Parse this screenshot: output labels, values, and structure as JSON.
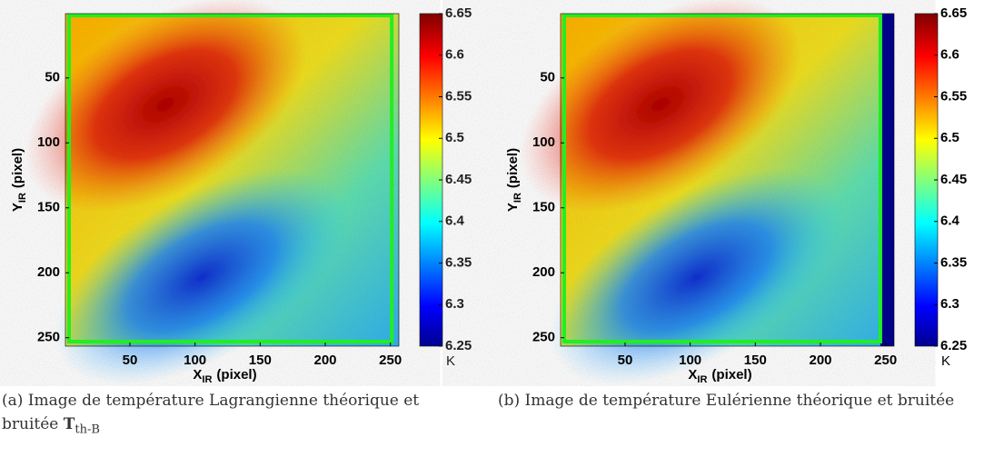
{
  "chart_data": [
    {
      "type": "heatmap",
      "colormap": "jet",
      "xlabel": {
        "main": "X",
        "sub": "IR",
        "unit": "(pixel)"
      },
      "ylabel": {
        "main": "Y",
        "sub": "IR",
        "unit": "(pixel)"
      },
      "xlim": [
        0.5,
        256.5
      ],
      "ylim": [
        256.5,
        0.5
      ],
      "xticks": [
        50,
        100,
        150,
        200,
        250
      ],
      "yticks": [
        50,
        100,
        150,
        200,
        250
      ],
      "colorbar": {
        "lim": [
          6.25,
          6.65
        ],
        "ticks": [
          6.25,
          6.3,
          6.35,
          6.4,
          6.45,
          6.5,
          6.55,
          6.6,
          6.65
        ],
        "unit": "K"
      },
      "caption": {
        "text": "(a) Image de température Lagrangienne théorique et bruitée",
        "symbol": "T",
        "sub": "th-B"
      }
    },
    {
      "type": "heatmap",
      "colormap": "jet",
      "xlabel": {
        "main": "X",
        "sub": "IR",
        "unit": "(pixel)"
      },
      "ylabel": {
        "main": "Y",
        "sub": "IR",
        "unit": "(pixel)"
      },
      "xlim": [
        0.5,
        256.5
      ],
      "ylim": [
        256.5,
        0.5
      ],
      "xticks": [
        50,
        100,
        150,
        200,
        250
      ],
      "yticks": [
        50,
        100,
        150,
        200,
        250
      ],
      "colorbar": {
        "lim": [
          6.25,
          6.65
        ],
        "ticks": [
          6.25,
          6.3,
          6.35,
          6.4,
          6.45,
          6.5,
          6.55,
          6.6,
          6.65
        ],
        "unit": "K"
      },
      "caption": {
        "text": "(b) Image de température Eulérienne théorique et bruitée"
      }
    }
  ]
}
